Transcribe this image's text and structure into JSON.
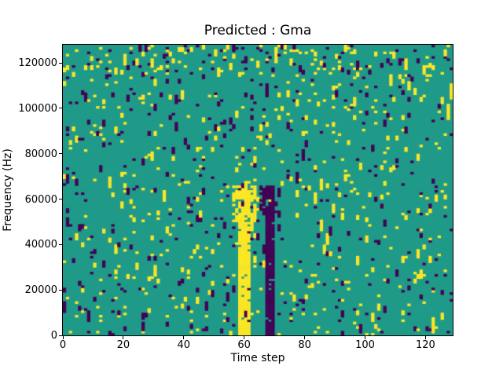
{
  "figure": {
    "background": "#ffffff"
  },
  "chart_data": {
    "type": "heatmap",
    "title": "Predicted : Gma",
    "xlabel": "Time step",
    "ylabel": "Frequency (Hz)",
    "x_ticks": [
      "0",
      "20",
      "40",
      "60",
      "80",
      "100",
      "120"
    ],
    "x_tick_values": [
      0,
      20,
      40,
      60,
      80,
      100,
      120
    ],
    "y_ticks": [
      "0",
      "20000",
      "40000",
      "60000",
      "80000",
      "100000",
      "120000"
    ],
    "y_tick_values": [
      0,
      20000,
      40000,
      60000,
      80000,
      100000,
      120000
    ],
    "x_range": [
      0,
      129
    ],
    "y_range": [
      0,
      128000
    ],
    "grid": false,
    "legend": null,
    "colormap": {
      "mid_teal": "#1f9a89",
      "low_purple": "#440154",
      "high_yellow": "#fde725"
    },
    "grid_size": {
      "cols": 129,
      "rows": 128
    },
    "noise": {
      "seed": 42,
      "p_high": 0.03,
      "p_low": 0.026,
      "run_continue": 0.35
    },
    "features": [
      {
        "name": "top-frequency-noise-band",
        "x0": 0,
        "x1": 129,
        "y0": 114000,
        "y1": 128000,
        "p_high": 0.07,
        "p_low": 0.035
      },
      {
        "name": "yellow-blob",
        "x0": 56,
        "x1": 64,
        "y0": 50000,
        "y1": 66000,
        "p_high": 0.55,
        "p_low": 0.03
      },
      {
        "name": "yellow-event-band",
        "x0": 58,
        "x1": 62,
        "y0": 0,
        "y1": 64000,
        "p_high": 0.85,
        "p_low": 0.04
      },
      {
        "name": "dark-blob",
        "x0": 65,
        "x1": 72,
        "y0": 52000,
        "y1": 66000,
        "p_high": 0.03,
        "p_low": 0.5
      },
      {
        "name": "dark-event-band",
        "x0": 67,
        "x1": 70,
        "y0": 0,
        "y1": 64000,
        "p_high": 0.03,
        "p_low": 0.85
      }
    ]
  }
}
